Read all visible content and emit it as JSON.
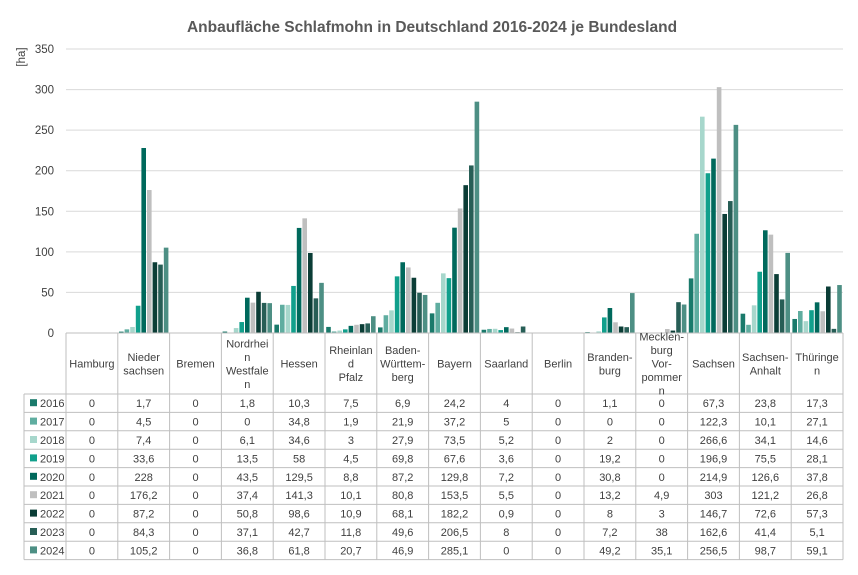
{
  "chart_data": {
    "type": "bar",
    "title": "Anbaufläche Schlafmohn in Deutschland 2016-2024 je Bundesland",
    "ylabel": "[ha]",
    "ylim": [
      0,
      350
    ],
    "yticks": [
      0,
      50,
      100,
      150,
      200,
      250,
      300,
      350
    ],
    "grid": true,
    "legend": "data-table-left",
    "categories": [
      "Hamburg",
      "Nieder-sachsen",
      "Bremen",
      "Nordrhei-n-Westfale-n",
      "Hessen",
      "Rheinlan-d-Pfalz",
      "Baden--Württem--berg",
      "Bayern",
      "Saarland",
      "Berlin",
      "Branden--burg",
      "Mecklen--burg-Vor--pommer-n",
      "Sachsen",
      "Sachsen--Anhalt",
      "Thüringe-n"
    ],
    "series": [
      {
        "name": "2016",
        "color": "#1a7a6b",
        "values": [
          "0",
          "1,7",
          "0",
          "1,8",
          "10,3",
          "7,5",
          "6,9",
          "24,2",
          "4",
          "0",
          "1,1",
          "0",
          "67,3",
          "23,8",
          "17,3"
        ]
      },
      {
        "name": "2017",
        "color": "#5fada0",
        "values": [
          "0",
          "4,5",
          "0",
          "0",
          "34,8",
          "1,9",
          "21,9",
          "37,2",
          "5",
          "0",
          "0",
          "0",
          "122,3",
          "10,1",
          "27,1"
        ]
      },
      {
        "name": "2018",
        "color": "#a7d7cc",
        "values": [
          "0",
          "7,4",
          "0",
          "6,1",
          "34,6",
          "3",
          "27,9",
          "73,5",
          "5,2",
          "0",
          "2",
          "0",
          "266,6",
          "34,1",
          "14,6"
        ]
      },
      {
        "name": "2019",
        "color": "#11a08c",
        "values": [
          "0",
          "33,6",
          "0",
          "13,5",
          "58",
          "4,5",
          "69,8",
          "67,6",
          "3,6",
          "0",
          "19,2",
          "0",
          "196,9",
          "75,5",
          "28,1"
        ]
      },
      {
        "name": "2020",
        "color": "#00695c",
        "values": [
          "0",
          "228",
          "0",
          "43,5",
          "129,5",
          "8,8",
          "87,2",
          "129,8",
          "7,2",
          "0",
          "30,8",
          "0",
          "214,9",
          "126,6",
          "37,8"
        ]
      },
      {
        "name": "2021",
        "color": "#bfbfbf",
        "values": [
          "0",
          "176,2",
          "0",
          "37,4",
          "141,3",
          "10,1",
          "80,8",
          "153,5",
          "5,5",
          "0",
          "13,2",
          "4,9",
          "303",
          "121,2",
          "26,8"
        ]
      },
      {
        "name": "2022",
        "color": "#0b3d36",
        "values": [
          "0",
          "87,2",
          "0",
          "50,8",
          "98,6",
          "10,9",
          "68,1",
          "182,2",
          "0,9",
          "0",
          "8",
          "3",
          "146,7",
          "72,6",
          "57,3"
        ]
      },
      {
        "name": "2023",
        "color": "#275e56",
        "values": [
          "0",
          "84,3",
          "0",
          "37,1",
          "42,7",
          "11,8",
          "49,6",
          "206,5",
          "8",
          "0",
          "7,2",
          "38",
          "162,6",
          "41,4",
          "5,1"
        ]
      },
      {
        "name": "2024",
        "color": "#4d8f84",
        "values": [
          "0",
          "105,2",
          "0",
          "36,8",
          "61,8",
          "20,7",
          "46,9",
          "285,1",
          "0",
          "0",
          "49,2",
          "35,1",
          "256,5",
          "98,7",
          "59,1"
        ]
      }
    ]
  }
}
